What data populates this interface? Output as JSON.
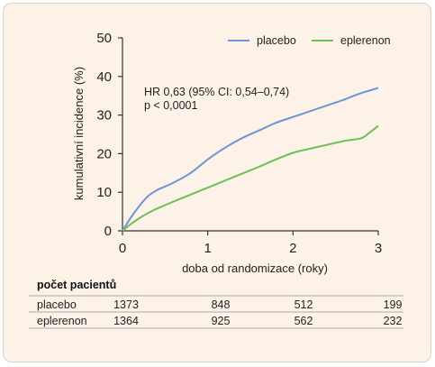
{
  "colors": {
    "placebo": "#6f96d4",
    "eplerenon": "#6cc05a",
    "panel": "#fcf2e7",
    "axis": "#333333",
    "table_rule": "#aaaaaa"
  },
  "chart_data": {
    "type": "line",
    "ylabel": "kumulativní incidence (%)",
    "xlabel": "doba od randomizace (roky)",
    "xlim": [
      0,
      3
    ],
    "ylim": [
      0,
      50
    ],
    "xticks": [
      0,
      1,
      2,
      3
    ],
    "yticks": [
      0,
      10,
      20,
      30,
      40,
      50
    ],
    "grid": false,
    "legend_position": "top-right",
    "series": [
      {
        "name": "placebo",
        "color": "#6f96d4",
        "x": [
          0,
          0.1,
          0.2,
          0.3,
          0.4,
          0.5,
          0.6,
          0.8,
          1.0,
          1.2,
          1.4,
          1.6,
          1.8,
          2.0,
          2.2,
          2.4,
          2.6,
          2.8,
          3.0
        ],
        "y": [
          0,
          3.5,
          6.5,
          9.0,
          10.5,
          11.5,
          12.5,
          15.0,
          18.5,
          21.5,
          24.0,
          26.0,
          28.0,
          29.5,
          31.0,
          32.5,
          34.0,
          35.7,
          37.0
        ]
      },
      {
        "name": "eplerenon",
        "color": "#6cc05a",
        "x": [
          0,
          0.1,
          0.2,
          0.3,
          0.4,
          0.6,
          0.8,
          1.0,
          1.2,
          1.4,
          1.6,
          1.8,
          2.0,
          2.2,
          2.4,
          2.6,
          2.8,
          2.9,
          3.0
        ],
        "y": [
          0,
          1.8,
          3.3,
          4.6,
          5.7,
          7.6,
          9.4,
          11.2,
          13.0,
          14.8,
          16.6,
          18.5,
          20.2,
          21.3,
          22.3,
          23.3,
          24.0,
          25.5,
          27.2
        ]
      }
    ],
    "annotation": [
      "HR 0,63 (95% CI: 0,54–0,74)",
      "p < 0,0001"
    ]
  },
  "table": {
    "title": "počet pacientů",
    "rows": [
      {
        "label": "placebo",
        "values": [
          "1373",
          "848",
          "512",
          "199"
        ]
      },
      {
        "label": "eplerenon",
        "values": [
          "1364",
          "925",
          "562",
          "232"
        ]
      }
    ]
  }
}
